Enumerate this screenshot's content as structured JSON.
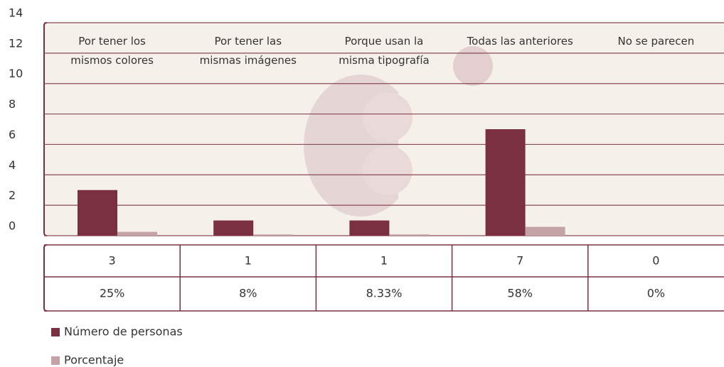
{
  "chart_data": {
    "type": "bar",
    "categories": [
      "Por tener los mismos colores",
      "Por tener las mismas imágenes",
      "Porque usan la misma tipografía",
      "Todas las anteriores",
      "No se parecen"
    ],
    "series": [
      {
        "name": "Número de personas",
        "color": "#7b3040",
        "values": [
          3,
          1,
          1,
          7,
          0
        ]
      },
      {
        "name": "Porcentaje",
        "color": "#c3a3a5",
        "values": [
          0.25,
          0.08,
          0.0833,
          0.58,
          0
        ],
        "value_labels": [
          "25%",
          "8%",
          "8.33%",
          "58%",
          "0%"
        ]
      }
    ],
    "ylim": [
      0,
      14
    ],
    "yticks": [
      0,
      2,
      4,
      6,
      8,
      10,
      12,
      14
    ],
    "grid": true
  }
}
